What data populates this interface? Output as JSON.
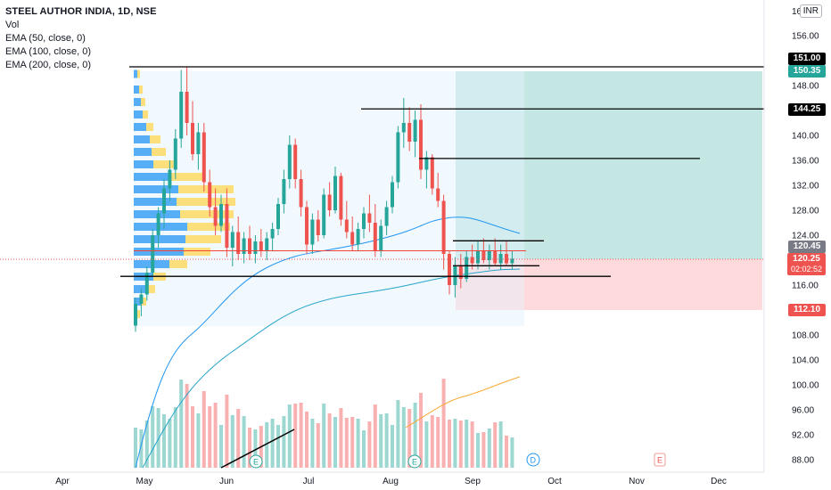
{
  "legend": {
    "symbol": "STEEL AUTHOR INDIA, 1D, NSE",
    "indicators": [
      "Vol",
      "EMA (50, close, 0)",
      "EMA (100, close, 0)",
      "EMA (200, close, 0)"
    ]
  },
  "currency": "INR",
  "badges": {
    "level_151": "151.00",
    "target": "150.35",
    "level_144": "144.25",
    "last_close": "120.45",
    "current_price": "120.25",
    "countdown": "02:02:52",
    "stop": "112.10"
  },
  "colors": {
    "up": "#26a69a",
    "down": "#ef5350",
    "ema50": "#2196f3",
    "ema100": "#26a5c9",
    "ema200": "#f7a935",
    "target_zone": "#b2dfdb",
    "stop_zone": "#ffcdd2",
    "profile_up": "#2196f3",
    "profile_down": "#ffd54f",
    "profile_box": "#e3f2fd",
    "hline": "#000000",
    "poc": "#f44336"
  },
  "chart_data": {
    "type": "candlestick",
    "price_axis": {
      "ticks": [
        "156.00",
        "152.00",
        "148.00",
        "144.00",
        "140.00",
        "136.00",
        "132.00",
        "128.00",
        "124.00",
        "120.00",
        "116.00",
        "112.00",
        "108.00",
        "104.00",
        "100.00",
        "96.00",
        "92.00",
        "88.00"
      ],
      "top_label": "16",
      "ylim": [
        86.5,
        160
      ]
    },
    "time_axis": {
      "ticks": [
        "Apr",
        "May",
        "Jun",
        "Jul",
        "Aug",
        "Sep",
        "Oct",
        "Nov",
        "Dec"
      ]
    },
    "horizontal_levels": [
      {
        "price": 151.0,
        "label": "151.00"
      },
      {
        "price": 144.25,
        "label": "144.25"
      },
      {
        "price": 136.3
      },
      {
        "price": 123.1
      },
      {
        "price": 119.1
      },
      {
        "price": 117.4
      },
      {
        "price": 121.5,
        "note": "point of control"
      }
    ],
    "position": {
      "entry": 120.25,
      "target": 150.35,
      "stop": 112.1
    },
    "candles": [
      [
        109.5,
        114.0,
        108.5,
        113.0
      ],
      [
        113.0,
        115.5,
        111.0,
        114.5
      ],
      [
        114.5,
        119.0,
        113.5,
        118.0
      ],
      [
        118.0,
        125.0,
        117.5,
        124.0
      ],
      [
        124.0,
        128.5,
        122.0,
        127.5
      ],
      [
        127.5,
        133.0,
        125.0,
        131.5
      ],
      [
        131.5,
        136.0,
        129.5,
        134.5
      ],
      [
        134.5,
        141.0,
        133.0,
        139.5
      ],
      [
        139.5,
        150.5,
        138.0,
        147.0
      ],
      [
        147.0,
        151.0,
        140.0,
        142.0
      ],
      [
        142.0,
        145.5,
        136.0,
        137.0
      ],
      [
        137.0,
        142.0,
        134.5,
        140.5
      ],
      [
        140.5,
        142.0,
        131.0,
        132.5
      ],
      [
        132.5,
        134.5,
        127.0,
        128.5
      ],
      [
        128.5,
        131.5,
        124.0,
        125.5
      ],
      [
        125.5,
        130.5,
        124.5,
        129.0
      ],
      [
        129.0,
        131.5,
        120.5,
        122.0
      ],
      [
        122.0,
        125.5,
        119.0,
        124.5
      ],
      [
        124.5,
        127.0,
        120.0,
        121.0
      ],
      [
        121.0,
        124.5,
        119.5,
        123.5
      ],
      [
        123.5,
        125.5,
        120.0,
        121.0
      ],
      [
        121.0,
        124.0,
        119.5,
        123.0
      ],
      [
        123.0,
        125.0,
        120.5,
        121.5
      ],
      [
        121.5,
        124.5,
        120.0,
        123.5
      ],
      [
        123.5,
        126.0,
        121.5,
        125.0
      ],
      [
        125.0,
        130.0,
        124.0,
        129.0
      ],
      [
        129.0,
        134.5,
        127.5,
        133.0
      ],
      [
        133.0,
        140.0,
        131.5,
        138.5
      ],
      [
        138.5,
        139.5,
        131.5,
        133.0
      ],
      [
        133.0,
        134.5,
        127.0,
        128.5
      ],
      [
        128.5,
        129.5,
        121.0,
        122.5
      ],
      [
        122.5,
        127.5,
        121.0,
        126.5
      ],
      [
        126.5,
        128.0,
        123.0,
        124.0
      ],
      [
        124.0,
        131.5,
        123.5,
        130.5
      ],
      [
        130.5,
        132.5,
        127.0,
        128.0
      ],
      [
        128.0,
        135.0,
        127.5,
        133.5
      ],
      [
        133.5,
        134.0,
        125.5,
        126.5
      ],
      [
        126.5,
        129.5,
        123.5,
        124.5
      ],
      [
        124.5,
        127.0,
        121.5,
        122.5
      ],
      [
        122.5,
        126.0,
        121.5,
        125.0
      ],
      [
        125.0,
        128.5,
        123.5,
        127.5
      ],
      [
        127.5,
        130.5,
        124.5,
        126.0
      ],
      [
        126.0,
        129.0,
        120.5,
        121.5
      ],
      [
        121.5,
        126.5,
        120.5,
        125.5
      ],
      [
        125.5,
        129.5,
        124.0,
        128.5
      ],
      [
        128.5,
        133.5,
        127.5,
        132.5
      ],
      [
        132.5,
        141.5,
        131.5,
        140.5
      ],
      [
        140.5,
        146.0,
        138.0,
        142.0
      ],
      [
        142.0,
        144.5,
        137.5,
        139.0
      ],
      [
        139.0,
        144.0,
        136.5,
        142.5
      ],
      [
        142.5,
        145.0,
        133.0,
        134.5
      ],
      [
        134.5,
        137.5,
        131.5,
        136.5
      ],
      [
        136.5,
        137.0,
        130.5,
        131.5
      ],
      [
        131.5,
        134.0,
        128.5,
        129.5
      ],
      [
        129.5,
        130.5,
        118.5,
        121.0
      ],
      [
        121.0,
        121.5,
        114.5,
        116.0
      ],
      [
        116.0,
        120.5,
        114.0,
        119.0
      ],
      [
        119.0,
        121.0,
        115.5,
        117.0
      ],
      [
        117.0,
        121.5,
        116.5,
        120.5
      ],
      [
        120.5,
        122.5,
        118.5,
        119.5
      ],
      [
        119.5,
        123.0,
        118.5,
        121.5
      ],
      [
        121.5,
        123.5,
        119.5,
        120.0
      ],
      [
        120.0,
        122.5,
        118.5,
        121.5
      ],
      [
        121.5,
        123.5,
        119.0,
        119.5
      ],
      [
        119.5,
        122.5,
        118.5,
        121.0
      ],
      [
        121.0,
        123.0,
        119.0,
        119.5
      ],
      [
        119.5,
        121.5,
        118.5,
        120.25
      ]
    ]
  }
}
